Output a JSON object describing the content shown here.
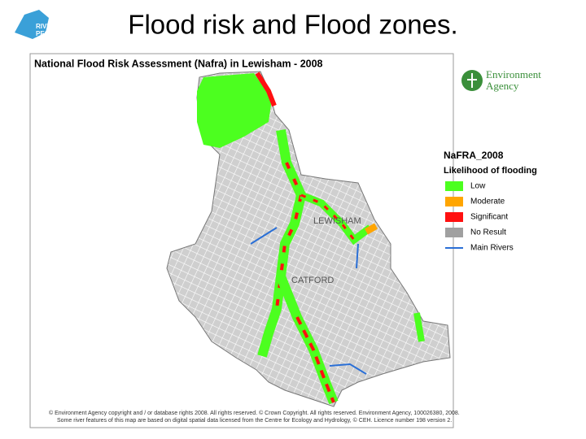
{
  "slide_title": "Flood risk and Flood zones.",
  "logo": {
    "line1": "RIVERS",
    "line2": "PEOPLE"
  },
  "map": {
    "title": "National Flood Risk Assessment (Nafra) in Lewisham - 2008",
    "agency": {
      "line1": "Environment",
      "line2": "Agency"
    },
    "places": [
      "LEWISHAM",
      "CATFORD"
    ],
    "legend": {
      "title": "NaFRA_2008",
      "subtitle": "Likelihood of flooding",
      "items": [
        {
          "label": "Low",
          "color": "#4cff1f",
          "kind": "box"
        },
        {
          "label": "Moderate",
          "color": "#ffa500",
          "kind": "box"
        },
        {
          "label": "Significant",
          "color": "#ff1010",
          "kind": "box"
        },
        {
          "label": "No Result",
          "color": "#a0a0a0",
          "kind": "box"
        },
        {
          "label": "Main Rivers",
          "color": "#2a6fd6",
          "kind": "line"
        }
      ]
    },
    "copyright": [
      "© Environment Agency copyright and / or database rights 2008. All rights reserved. © Crown Copyright. All rights reserved. Environment Agency, 100026380, 2008.",
      "Some river features of this map are based on digital spatial data licensed from the Centre for Ecology and Hydrology, © CEH. Licence number 198 version 2."
    ]
  }
}
